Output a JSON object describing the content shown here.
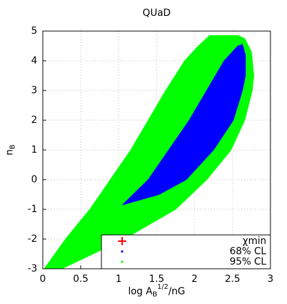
{
  "chart_data": {
    "type": "region",
    "title": "QUaD",
    "xlabel": [
      "log A",
      "B",
      "1/2",
      "/nG"
    ],
    "ylabel": [
      "n",
      "B"
    ],
    "xlim": [
      0,
      3
    ],
    "ylim": [
      -3,
      5
    ],
    "xticks": [
      0,
      0.5,
      1,
      1.5,
      2,
      2.5,
      3
    ],
    "yticks": [
      -3,
      -2,
      -1,
      0,
      1,
      2,
      3,
      4,
      5
    ],
    "grid": true,
    "legend": "lower right",
    "series": [
      {
        "name": "χmin",
        "color": "#ff0000",
        "marker": "cross",
        "x": [],
        "values": []
      },
      {
        "name": "68% CL",
        "color": "#0000ff",
        "marker": "dot",
        "x": [
          1.05,
          1.39,
          1.66,
          1.93,
          2.16,
          2.39,
          2.57,
          2.63,
          2.67,
          2.67,
          2.63,
          2.51,
          2.25,
          1.89,
          1.53
        ],
        "values": [
          -0.85,
          0,
          1,
          2,
          3,
          4,
          4.5,
          4.55,
          4.2,
          3.5,
          3,
          2,
          1,
          0,
          -0.5
        ]
      },
      {
        "name": "95% CL",
        "color": "#00ff00",
        "marker": "dot",
        "x": [
          0.02,
          0.3,
          0.62,
          0.89,
          1.16,
          1.39,
          1.62,
          1.87,
          2.05,
          2.2,
          2.57,
          2.66,
          2.75,
          2.78,
          2.76,
          2.66,
          2.48,
          2.16,
          1.75,
          1.07,
          0.66,
          0.25
        ],
        "values": [
          -3,
          -2,
          -1,
          0,
          1,
          2,
          3,
          4,
          4.5,
          4.85,
          4.85,
          4.75,
          4.3,
          3.5,
          3,
          2,
          1,
          0,
          -1,
          -2,
          -2.5,
          -3
        ]
      }
    ]
  }
}
